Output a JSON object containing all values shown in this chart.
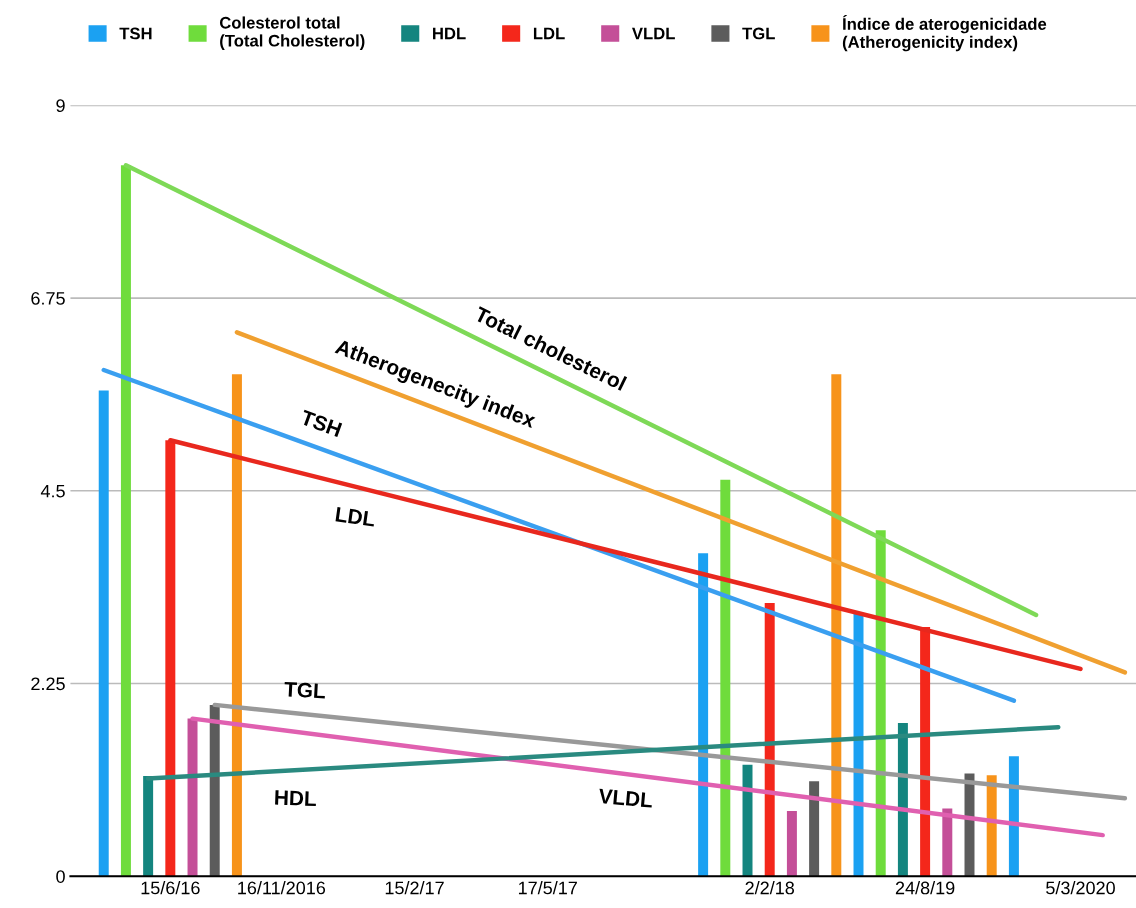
{
  "chart_data": {
    "type": "bar",
    "ylim": [
      0,
      9
    ],
    "yticks": [
      0,
      2.25,
      4.5,
      6.75,
      9
    ],
    "categories": [
      null,
      null,
      null,
      null,
      "15/6/16",
      null,
      null,
      null,
      null,
      "16/11/2016",
      null,
      null,
      null,
      null,
      null,
      "15/2/17",
      null,
      null,
      null,
      null,
      null,
      "17/5/17",
      null,
      null,
      null,
      null,
      null,
      null,
      null,
      null,
      null,
      "2/2/18",
      null,
      null,
      null,
      null,
      null,
      null,
      "24/8/19",
      null,
      null,
      null,
      null,
      null,
      null,
      "5/3/2020",
      null,
      null
    ],
    "grid": "y",
    "legend": "top",
    "marker": "none",
    "line_style": "solid",
    "series": [
      {
        "name": "TSH",
        "color": "#1ba1f2",
        "values": [
          null,
          5.67,
          null,
          null,
          null,
          null,
          null,
          null,
          null,
          null,
          null,
          null,
          null,
          null,
          null,
          null,
          null,
          null,
          null,
          null,
          null,
          null,
          null,
          null,
          null,
          null,
          null,
          null,
          3.77,
          null,
          null,
          null,
          null,
          null,
          null,
          3.06,
          null,
          null,
          null,
          null,
          null,
          null,
          1.4,
          null,
          null,
          null,
          null,
          null
        ]
      },
      {
        "name": "Colesterol total\n(Total Cholesterol)",
        "color": "#6fdc3c",
        "values": [
          null,
          null,
          8.3,
          null,
          null,
          null,
          null,
          null,
          null,
          null,
          null,
          null,
          null,
          null,
          null,
          null,
          null,
          null,
          null,
          null,
          null,
          null,
          null,
          null,
          null,
          null,
          null,
          null,
          null,
          4.63,
          null,
          null,
          null,
          null,
          null,
          null,
          4.04,
          null,
          null,
          null,
          null,
          null,
          null,
          null,
          null,
          null,
          null,
          null
        ]
      },
      {
        "name": "HDL",
        "color": "#14857f",
        "values": [
          null,
          null,
          null,
          1.17,
          null,
          null,
          null,
          null,
          null,
          null,
          null,
          null,
          null,
          null,
          null,
          null,
          null,
          null,
          null,
          null,
          null,
          null,
          null,
          null,
          null,
          null,
          null,
          null,
          null,
          null,
          1.3,
          null,
          null,
          null,
          null,
          null,
          null,
          1.79,
          null,
          null,
          null,
          null,
          null,
          null,
          null,
          null,
          null,
          null
        ]
      },
      {
        "name": "LDL",
        "color": "#f4271b",
        "values": [
          null,
          null,
          null,
          null,
          5.09,
          null,
          null,
          null,
          null,
          null,
          null,
          null,
          null,
          null,
          null,
          null,
          null,
          null,
          null,
          null,
          null,
          null,
          null,
          null,
          null,
          null,
          null,
          null,
          null,
          null,
          null,
          3.19,
          null,
          null,
          null,
          null,
          null,
          null,
          2.91,
          null,
          null,
          null,
          null,
          null,
          null,
          null,
          null,
          null
        ]
      },
      {
        "name": "VLDL",
        "color": "#c44f98",
        "values": [
          null,
          null,
          null,
          null,
          null,
          1.84,
          null,
          null,
          null,
          null,
          null,
          null,
          null,
          null,
          null,
          null,
          null,
          null,
          null,
          null,
          null,
          null,
          null,
          null,
          null,
          null,
          null,
          null,
          null,
          null,
          null,
          null,
          0.76,
          null,
          null,
          null,
          null,
          null,
          null,
          0.79,
          null,
          null,
          null,
          null,
          null,
          null,
          null,
          null
        ]
      },
      {
        "name": "TGL",
        "color": "#5c5c5c",
        "values": [
          null,
          null,
          null,
          null,
          null,
          null,
          2.0,
          null,
          null,
          null,
          null,
          null,
          null,
          null,
          null,
          null,
          null,
          null,
          null,
          null,
          null,
          null,
          null,
          null,
          null,
          null,
          null,
          null,
          null,
          null,
          null,
          null,
          null,
          1.11,
          null,
          null,
          null,
          null,
          null,
          null,
          1.2,
          null,
          null,
          null,
          null,
          null,
          null,
          null
        ]
      },
      {
        "name": "Índice de aterogenicidade\n(Atherogenicity index)",
        "color": "#f7931a",
        "values": [
          null,
          null,
          null,
          null,
          null,
          null,
          null,
          5.86,
          null,
          null,
          null,
          null,
          null,
          null,
          null,
          null,
          null,
          null,
          null,
          null,
          null,
          null,
          null,
          null,
          null,
          null,
          null,
          null,
          null,
          null,
          null,
          null,
          null,
          null,
          5.86,
          null,
          null,
          null,
          null,
          null,
          null,
          1.18,
          null,
          null,
          null,
          null,
          null,
          null
        ]
      },
      {
        "type": "line",
        "color": "#7ed957",
        "values": [
          null,
          null,
          8.3,
          null,
          null,
          null,
          null,
          null,
          null,
          null,
          null,
          null,
          null,
          null,
          null,
          null,
          null,
          null,
          null,
          null,
          null,
          null,
          null,
          null,
          null,
          null,
          null,
          null,
          null,
          null,
          null,
          null,
          null,
          null,
          null,
          null,
          null,
          null,
          null,
          null,
          null,
          null,
          null,
          3.05,
          null,
          null,
          null,
          null
        ]
      },
      {
        "type": "line",
        "color": "#f0a030",
        "values": [
          null,
          null,
          null,
          null,
          null,
          null,
          null,
          6.35,
          null,
          null,
          null,
          null,
          null,
          null,
          null,
          null,
          null,
          null,
          null,
          null,
          null,
          null,
          null,
          null,
          null,
          null,
          null,
          null,
          null,
          null,
          null,
          null,
          null,
          null,
          null,
          null,
          null,
          null,
          null,
          null,
          null,
          null,
          null,
          null,
          null,
          null,
          null,
          2.38
        ]
      },
      {
        "type": "line",
        "color": "#3a9ff0",
        "values": [
          null,
          5.91,
          null,
          null,
          null,
          null,
          null,
          null,
          null,
          null,
          null,
          null,
          null,
          null,
          null,
          null,
          null,
          null,
          null,
          null,
          null,
          null,
          null,
          null,
          null,
          null,
          null,
          null,
          null,
          null,
          null,
          null,
          null,
          null,
          null,
          null,
          null,
          null,
          null,
          null,
          null,
          null,
          2.05,
          null,
          null,
          null,
          null,
          null
        ]
      },
      {
        "type": "line",
        "color": "#e8281e",
        "values": [
          null,
          null,
          null,
          null,
          5.09,
          null,
          null,
          null,
          null,
          null,
          null,
          null,
          null,
          null,
          null,
          null,
          null,
          null,
          null,
          null,
          null,
          null,
          null,
          null,
          null,
          null,
          null,
          null,
          null,
          null,
          null,
          null,
          null,
          null,
          null,
          null,
          null,
          null,
          null,
          null,
          null,
          null,
          null,
          null,
          null,
          2.42,
          null,
          null
        ]
      },
      {
        "type": "line",
        "color": "#999999",
        "values": [
          null,
          null,
          null,
          null,
          null,
          null,
          2.0,
          null,
          null,
          null,
          null,
          null,
          null,
          null,
          null,
          null,
          null,
          null,
          null,
          null,
          null,
          null,
          null,
          null,
          null,
          null,
          null,
          null,
          null,
          null,
          null,
          null,
          null,
          null,
          null,
          null,
          null,
          null,
          null,
          null,
          null,
          null,
          null,
          null,
          null,
          null,
          null,
          0.91
        ]
      },
      {
        "type": "line",
        "color": "#e060b0",
        "values": [
          null,
          null,
          null,
          null,
          null,
          1.84,
          null,
          null,
          null,
          null,
          null,
          null,
          null,
          null,
          null,
          null,
          null,
          null,
          null,
          null,
          null,
          null,
          null,
          null,
          null,
          null,
          null,
          null,
          null,
          null,
          null,
          null,
          null,
          null,
          null,
          null,
          null,
          null,
          null,
          null,
          null,
          null,
          null,
          null,
          null,
          null,
          0.48,
          null
        ]
      },
      {
        "type": "line",
        "color": "#2a8a80",
        "values": [
          null,
          null,
          null,
          1.14,
          null,
          null,
          null,
          null,
          null,
          null,
          null,
          null,
          null,
          null,
          null,
          null,
          null,
          null,
          null,
          null,
          null,
          null,
          null,
          null,
          null,
          null,
          null,
          null,
          null,
          null,
          null,
          null,
          null,
          null,
          null,
          null,
          null,
          null,
          null,
          null,
          null,
          null,
          null,
          null,
          1.74,
          null,
          null,
          null
        ]
      }
    ],
    "annotations": [
      "Total cholesterol",
      "Atherogenecity index",
      "TSH",
      "LDL",
      "TGL",
      "HDL",
      "VLDL"
    ]
  }
}
